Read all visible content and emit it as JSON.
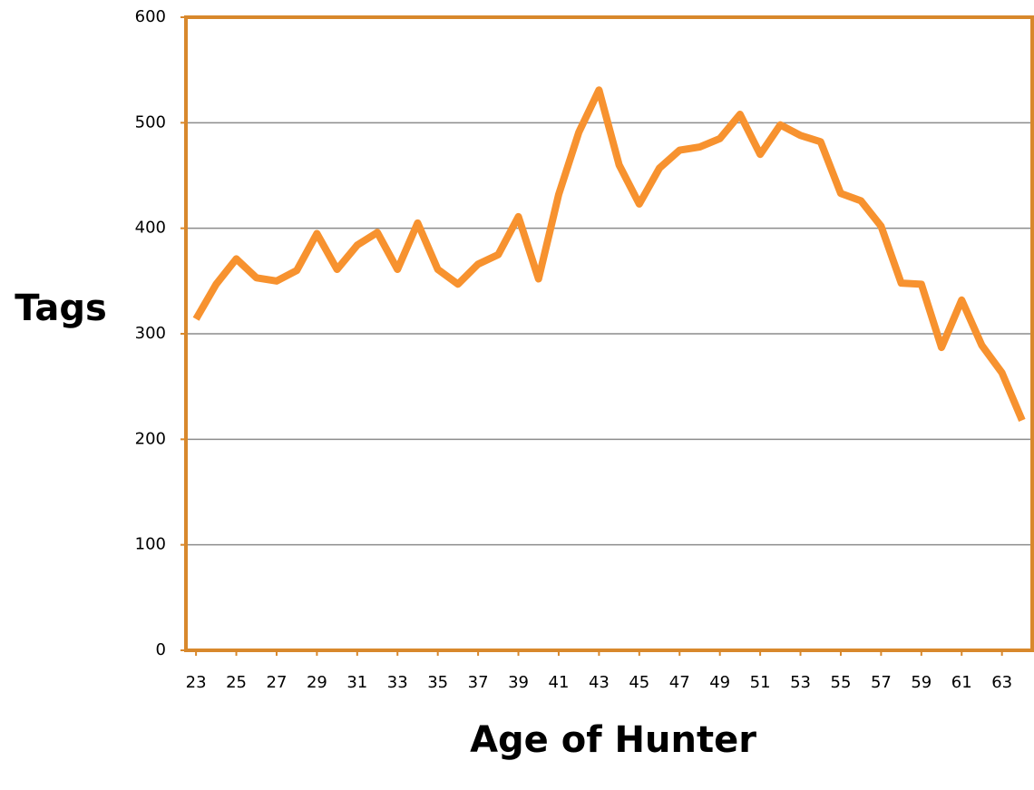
{
  "chart_data": {
    "type": "line",
    "x_label": "Age of Hunter",
    "y_label": "Tags",
    "x": [
      23,
      24,
      25,
      26,
      27,
      28,
      29,
      30,
      31,
      32,
      33,
      34,
      35,
      36,
      37,
      38,
      39,
      40,
      41,
      42,
      43,
      44,
      45,
      46,
      47,
      48,
      49,
      50,
      51,
      52,
      53,
      54,
      55,
      56,
      57,
      58,
      59,
      60,
      61,
      62,
      63,
      64
    ],
    "series": [
      {
        "color": "#f7922f",
        "values": [
          314,
          347,
          371,
          353,
          350,
          360,
          395,
          361,
          384,
          396,
          361,
          405,
          361,
          347,
          366,
          375,
          411,
          352,
          432,
          491,
          531,
          460,
          423,
          457,
          474,
          477,
          485,
          508,
          470,
          498,
          488,
          482,
          433,
          426,
          402,
          348,
          347,
          287,
          332,
          289,
          263,
          218
        ]
      }
    ],
    "xlim": [
      22.5,
      64.5
    ],
    "xticks": [
      23,
      25,
      27,
      29,
      31,
      33,
      35,
      37,
      39,
      41,
      43,
      45,
      47,
      49,
      51,
      53,
      55,
      57,
      59,
      61,
      63
    ],
    "ylim": [
      0,
      600
    ],
    "yticks": [
      0,
      100,
      200,
      300,
      400,
      500,
      600
    ],
    "grid": true
  }
}
